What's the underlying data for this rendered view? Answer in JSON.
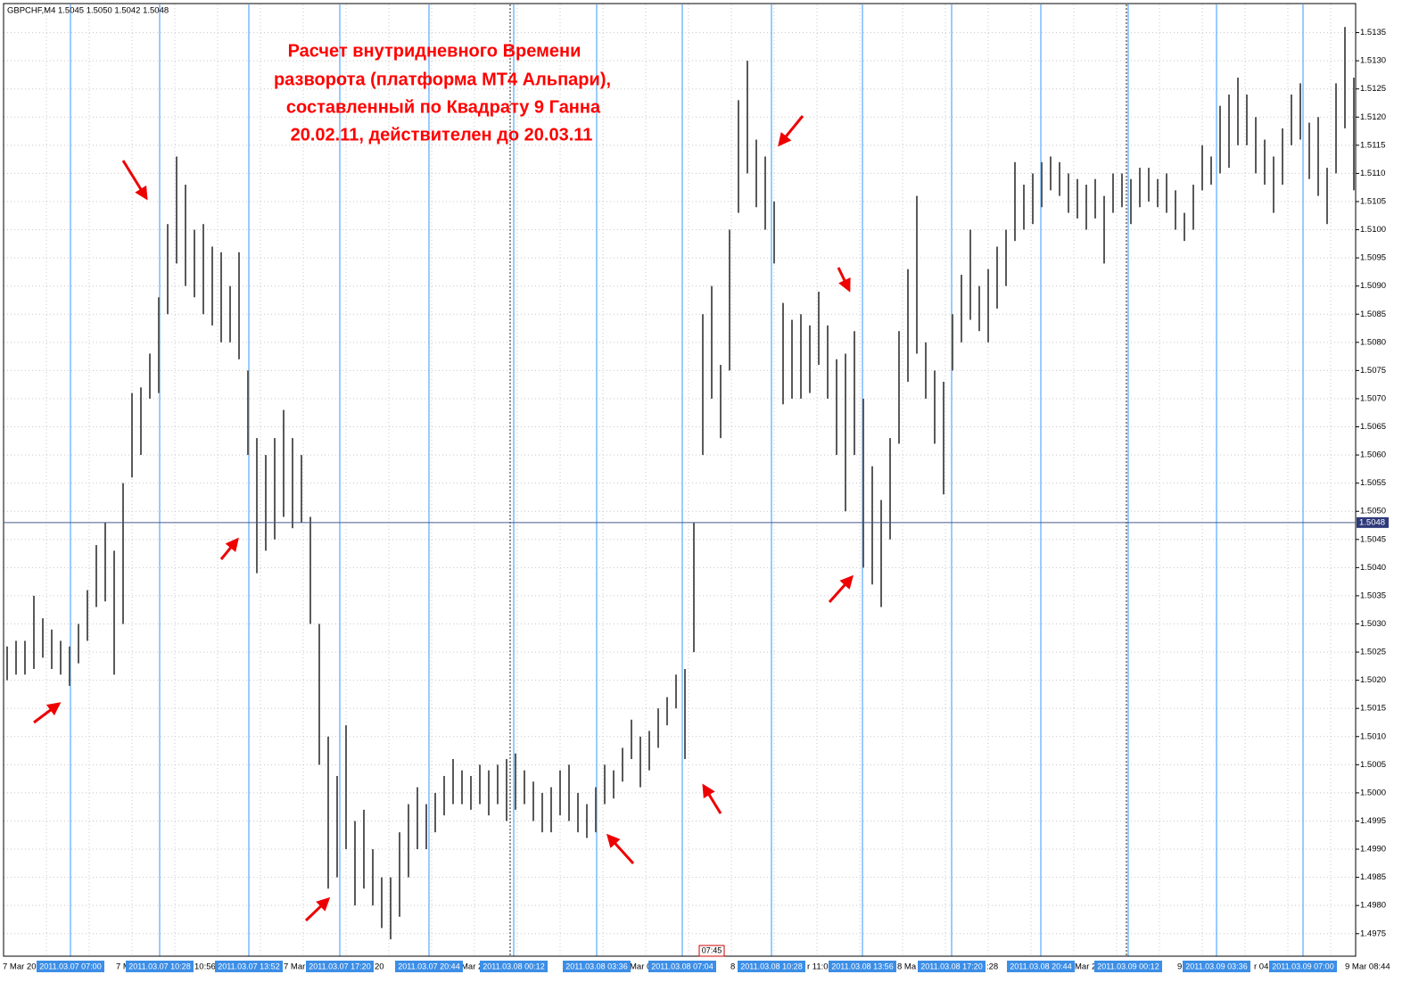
{
  "header": "GBPCHF,M4  1.5045 1.5050 1.5042 1.5048",
  "annotation": [
    "Расчет внутридневного Времени",
    "разворота (платформа МТ4 Альпари),",
    "составленный по Квадрату 9 Ганна",
    "20.02.11, действителен до 20.03.11"
  ],
  "chart_data": {
    "type": "ohlc",
    "color": "#5a5a5a",
    "ylim": [
      1.4971,
      1.514
    ],
    "yticks": [
      1.4975,
      {
        "value": 1.498,
        "label": "1.4980"
      },
      1.4985,
      {
        "value": 1.499,
        "label": "1.4990"
      },
      1.4995,
      {
        "value": 1.5,
        "label": "1.5000"
      },
      1.5005,
      {
        "value": 1.501,
        "label": "1.5010"
      },
      1.5015,
      {
        "value": 1.502,
        "label": "1.5020"
      },
      1.5025,
      {
        "value": 1.503,
        "label": "1.5030"
      },
      1.5035,
      {
        "value": 1.504,
        "label": "1.5040"
      },
      1.5045,
      {
        "value": 1.505,
        "label": "1.5050"
      },
      1.5055,
      {
        "value": 1.506,
        "label": "1.5060"
      },
      1.5065,
      {
        "value": 1.507,
        "label": "1.5070"
      },
      1.5075,
      {
        "value": 1.508,
        "label": "1.5080"
      },
      1.5085,
      {
        "value": 1.509,
        "label": "1.5090"
      },
      1.5095,
      {
        "value": 1.51,
        "label": "1.5100"
      },
      1.5105,
      {
        "value": 1.511,
        "label": "1.5110"
      },
      1.5115,
      {
        "value": 1.512,
        "label": "1.5120"
      },
      1.5125,
      {
        "value": 1.513,
        "label": "1.5130"
      },
      1.5135
    ],
    "grid": true,
    "current_price": 1.5048,
    "low": [
      1.502,
      1.5021,
      1.5021,
      1.5022,
      1.5024,
      1.5022,
      1.5021,
      1.5019,
      1.5023,
      1.5027,
      1.5033,
      1.5034,
      1.5021,
      1.503,
      1.5056,
      1.506,
      1.507,
      1.5071,
      1.5085,
      1.5094,
      1.509,
      1.5088,
      1.5085,
      1.5083,
      1.508,
      1.508,
      1.5077,
      1.506,
      1.5039,
      1.5043,
      1.5045,
      1.5049,
      1.5047,
      1.5048,
      1.503,
      1.5005,
      1.4983,
      1.4985,
      1.499,
      1.498,
      1.4983,
      1.498,
      1.4976,
      1.4974,
      1.4978,
      1.4985,
      1.499,
      1.499,
      1.4993,
      1.4996,
      1.4998,
      1.4998,
      1.4997,
      1.4998,
      1.4996,
      1.4998,
      1.4995,
      1.4997,
      1.4998,
      1.4995,
      1.4993,
      1.4993,
      1.4996,
      1.4995,
      1.4993,
      1.4992,
      1.4993,
      1.4998,
      1.4999,
      1.5002,
      1.5006,
      1.5001,
      1.5004,
      1.5008,
      1.5012,
      1.5015,
      1.5006,
      1.5025,
      1.506,
      1.507,
      1.5063,
      1.5075,
      1.5103,
      1.511,
      1.5104,
      1.51,
      1.5094,
      1.5069,
      1.507,
      1.507,
      1.5071,
      1.5076,
      1.507,
      1.506,
      1.505,
      1.506,
      1.504,
      1.5037,
      1.5033,
      1.5045,
      1.5062,
      1.5073,
      1.5078,
      1.507,
      1.5062,
      1.5053,
      1.5075,
      1.508,
      1.5084,
      1.5082,
      1.508,
      1.5086,
      1.509,
      1.5098,
      1.51,
      1.5101,
      1.5104,
      1.5107,
      1.5106,
      1.5103,
      1.5102,
      1.51,
      1.5102,
      1.5094,
      1.5103,
      1.5104,
      1.5101,
      1.5104,
      1.5105,
      1.5104,
      1.5103,
      1.51,
      1.5098,
      1.51,
      1.5107,
      1.5108,
      1.511,
      1.5111,
      1.5115,
      1.5115,
      1.511,
      1.5108,
      1.5103,
      1.5108,
      1.5115,
      1.5116,
      1.5109,
      1.5106,
      1.5101,
      1.511,
      1.5118,
      1.5107
    ],
    "high": [
      1.5026,
      1.5027,
      1.5027,
      1.5035,
      1.5031,
      1.5029,
      1.5027,
      1.5026,
      1.503,
      1.5036,
      1.5044,
      1.5048,
      1.5043,
      1.5055,
      1.5071,
      1.5072,
      1.5078,
      1.5088,
      1.5101,
      1.5113,
      1.5108,
      1.51,
      1.5101,
      1.5097,
      1.5096,
      1.509,
      1.5096,
      1.5075,
      1.5063,
      1.506,
      1.5063,
      1.5068,
      1.5063,
      1.506,
      1.5049,
      1.503,
      1.501,
      1.5003,
      1.5012,
      1.4995,
      1.4997,
      1.499,
      1.4985,
      1.4985,
      1.4993,
      1.4998,
      1.5001,
      1.4998,
      1.5,
      1.5003,
      1.5006,
      1.5004,
      1.5003,
      1.5005,
      1.5004,
      1.5005,
      1.5006,
      1.5007,
      1.5004,
      1.5002,
      1.5,
      1.5001,
      1.5004,
      1.5005,
      1.5,
      1.4998,
      1.5001,
      1.5005,
      1.5004,
      1.5008,
      1.5013,
      1.501,
      1.5011,
      1.5015,
      1.5017,
      1.5021,
      1.5022,
      1.5048,
      1.5085,
      1.509,
      1.5076,
      1.51,
      1.5123,
      1.513,
      1.5116,
      1.5113,
      1.5105,
      1.5087,
      1.5084,
      1.5085,
      1.5083,
      1.5089,
      1.5083,
      1.5077,
      1.5078,
      1.5082,
      1.507,
      1.5058,
      1.5052,
      1.5063,
      1.5082,
      1.5093,
      1.5106,
      1.508,
      1.5075,
      1.5073,
      1.5085,
      1.5092,
      1.51,
      1.509,
      1.5093,
      1.5097,
      1.51,
      1.5112,
      1.5108,
      1.511,
      1.5112,
      1.5113,
      1.5112,
      1.511,
      1.5109,
      1.5108,
      1.5109,
      1.5106,
      1.511,
      1.511,
      1.5109,
      1.5111,
      1.5111,
      1.5109,
      1.511,
      1.5107,
      1.5103,
      1.5108,
      1.5115,
      1.5113,
      1.5122,
      1.5124,
      1.5127,
      1.5124,
      1.512,
      1.5116,
      1.5113,
      1.5118,
      1.5124,
      1.5126,
      1.5119,
      1.512,
      1.5111,
      1.5126,
      1.5136,
      1.5127
    ],
    "vlines": [
      "2011.03.07 07:00",
      "2011.03.07 10:28",
      "2011.03.07 13:52",
      "2011.03.07 17:20",
      "2011.03.07 20:44",
      "2011.03.08 00:12",
      "2011.03.08 03:36",
      "2011.03.08 07:04",
      "2011.03.08 10:28",
      "2011.03.08 13:56",
      "2011.03.08 17:20",
      "2011.03.08 20:44",
      "2011.03.09 00:12",
      "2011.03.09 03:36",
      "2011.03.09 07:00"
    ],
    "time_labels": [
      "7 Mar 20",
      "7 M",
      "10:56",
      "7 Mar",
      "20",
      "Mar 2",
      "Mar 04",
      "8",
      "r 11:04",
      "8 Ma",
      ":28",
      "Mar 21",
      "9",
      "r 04",
      "9 Mar 08:44"
    ],
    "time_tag": "07:45"
  }
}
